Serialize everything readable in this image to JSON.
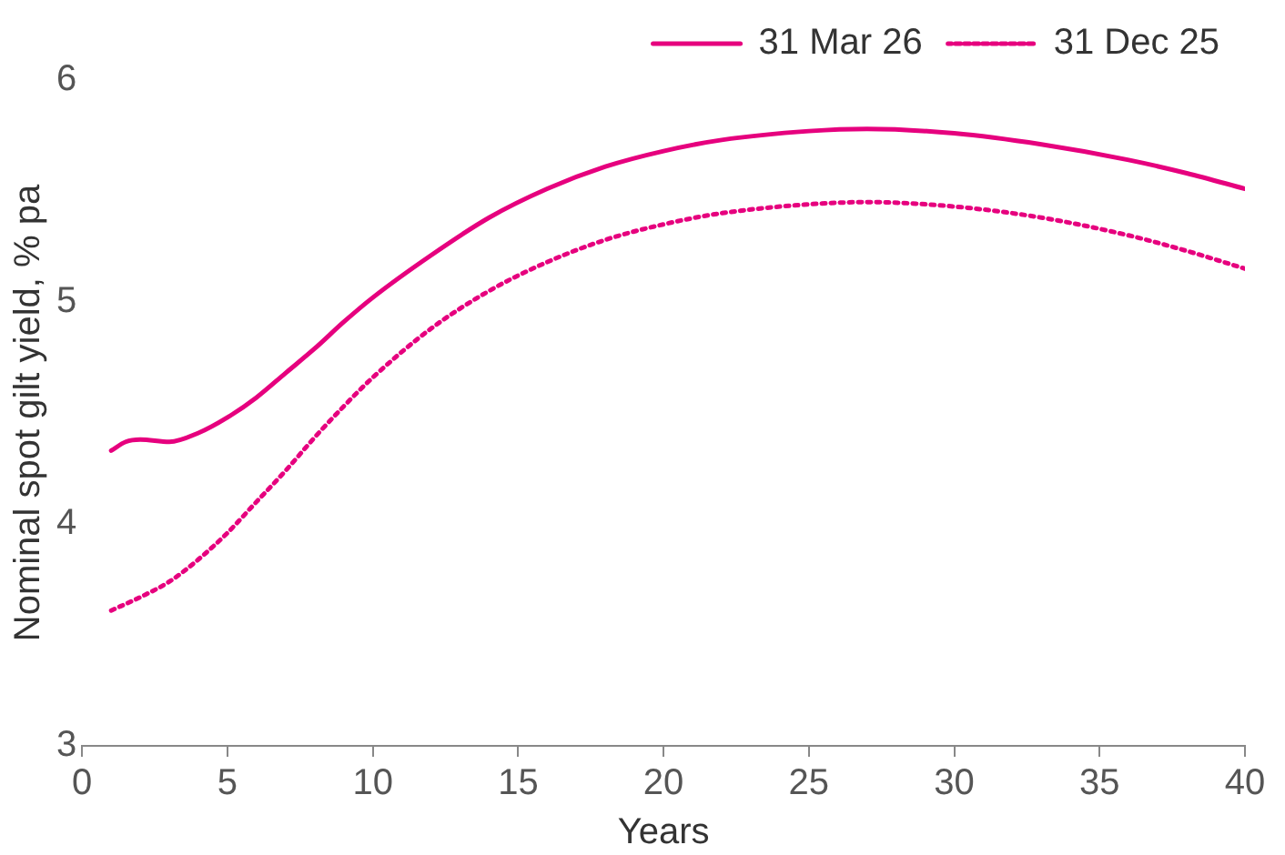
{
  "chart_data": {
    "type": "line",
    "xlabel": "Years",
    "ylabel": "Nominal spot gilt yield, % pa",
    "xlim": [
      0,
      40
    ],
    "xticks": [
      0,
      5,
      10,
      15,
      20,
      25,
      30,
      35,
      40
    ],
    "ylim": [
      3,
      6
    ],
    "yticks": [
      3,
      4,
      5,
      6
    ],
    "grid": false,
    "legend": "top right",
    "marker": "none",
    "series": [
      {
        "name": "31 Mar 26",
        "color": "#e6007e",
        "line_style": "solid",
        "x": [
          1,
          1.5,
          2,
          3,
          4,
          5,
          6,
          7,
          8,
          9,
          10,
          12,
          14,
          16,
          18,
          20,
          22,
          25,
          27,
          30,
          33,
          36,
          38,
          40
        ],
        "values": [
          4.33,
          4.37,
          4.38,
          4.37,
          4.41,
          4.48,
          4.57,
          4.68,
          4.79,
          4.91,
          5.02,
          5.21,
          5.38,
          5.51,
          5.61,
          5.68,
          5.73,
          5.77,
          5.78,
          5.76,
          5.71,
          5.64,
          5.58,
          5.51
        ]
      },
      {
        "name": "31 Dec 25",
        "color": "#e6007e",
        "line_style": "dotted",
        "x": [
          1,
          2,
          3,
          4,
          5,
          6,
          7,
          8,
          9,
          10,
          12,
          14,
          16,
          18,
          20,
          22,
          25,
          27,
          30,
          33,
          36,
          38,
          40
        ],
        "values": [
          3.61,
          3.67,
          3.74,
          3.84,
          3.96,
          4.1,
          4.24,
          4.39,
          4.53,
          4.66,
          4.88,
          5.05,
          5.18,
          5.28,
          5.35,
          5.4,
          5.44,
          5.45,
          5.43,
          5.38,
          5.3,
          5.23,
          5.15
        ]
      }
    ]
  }
}
